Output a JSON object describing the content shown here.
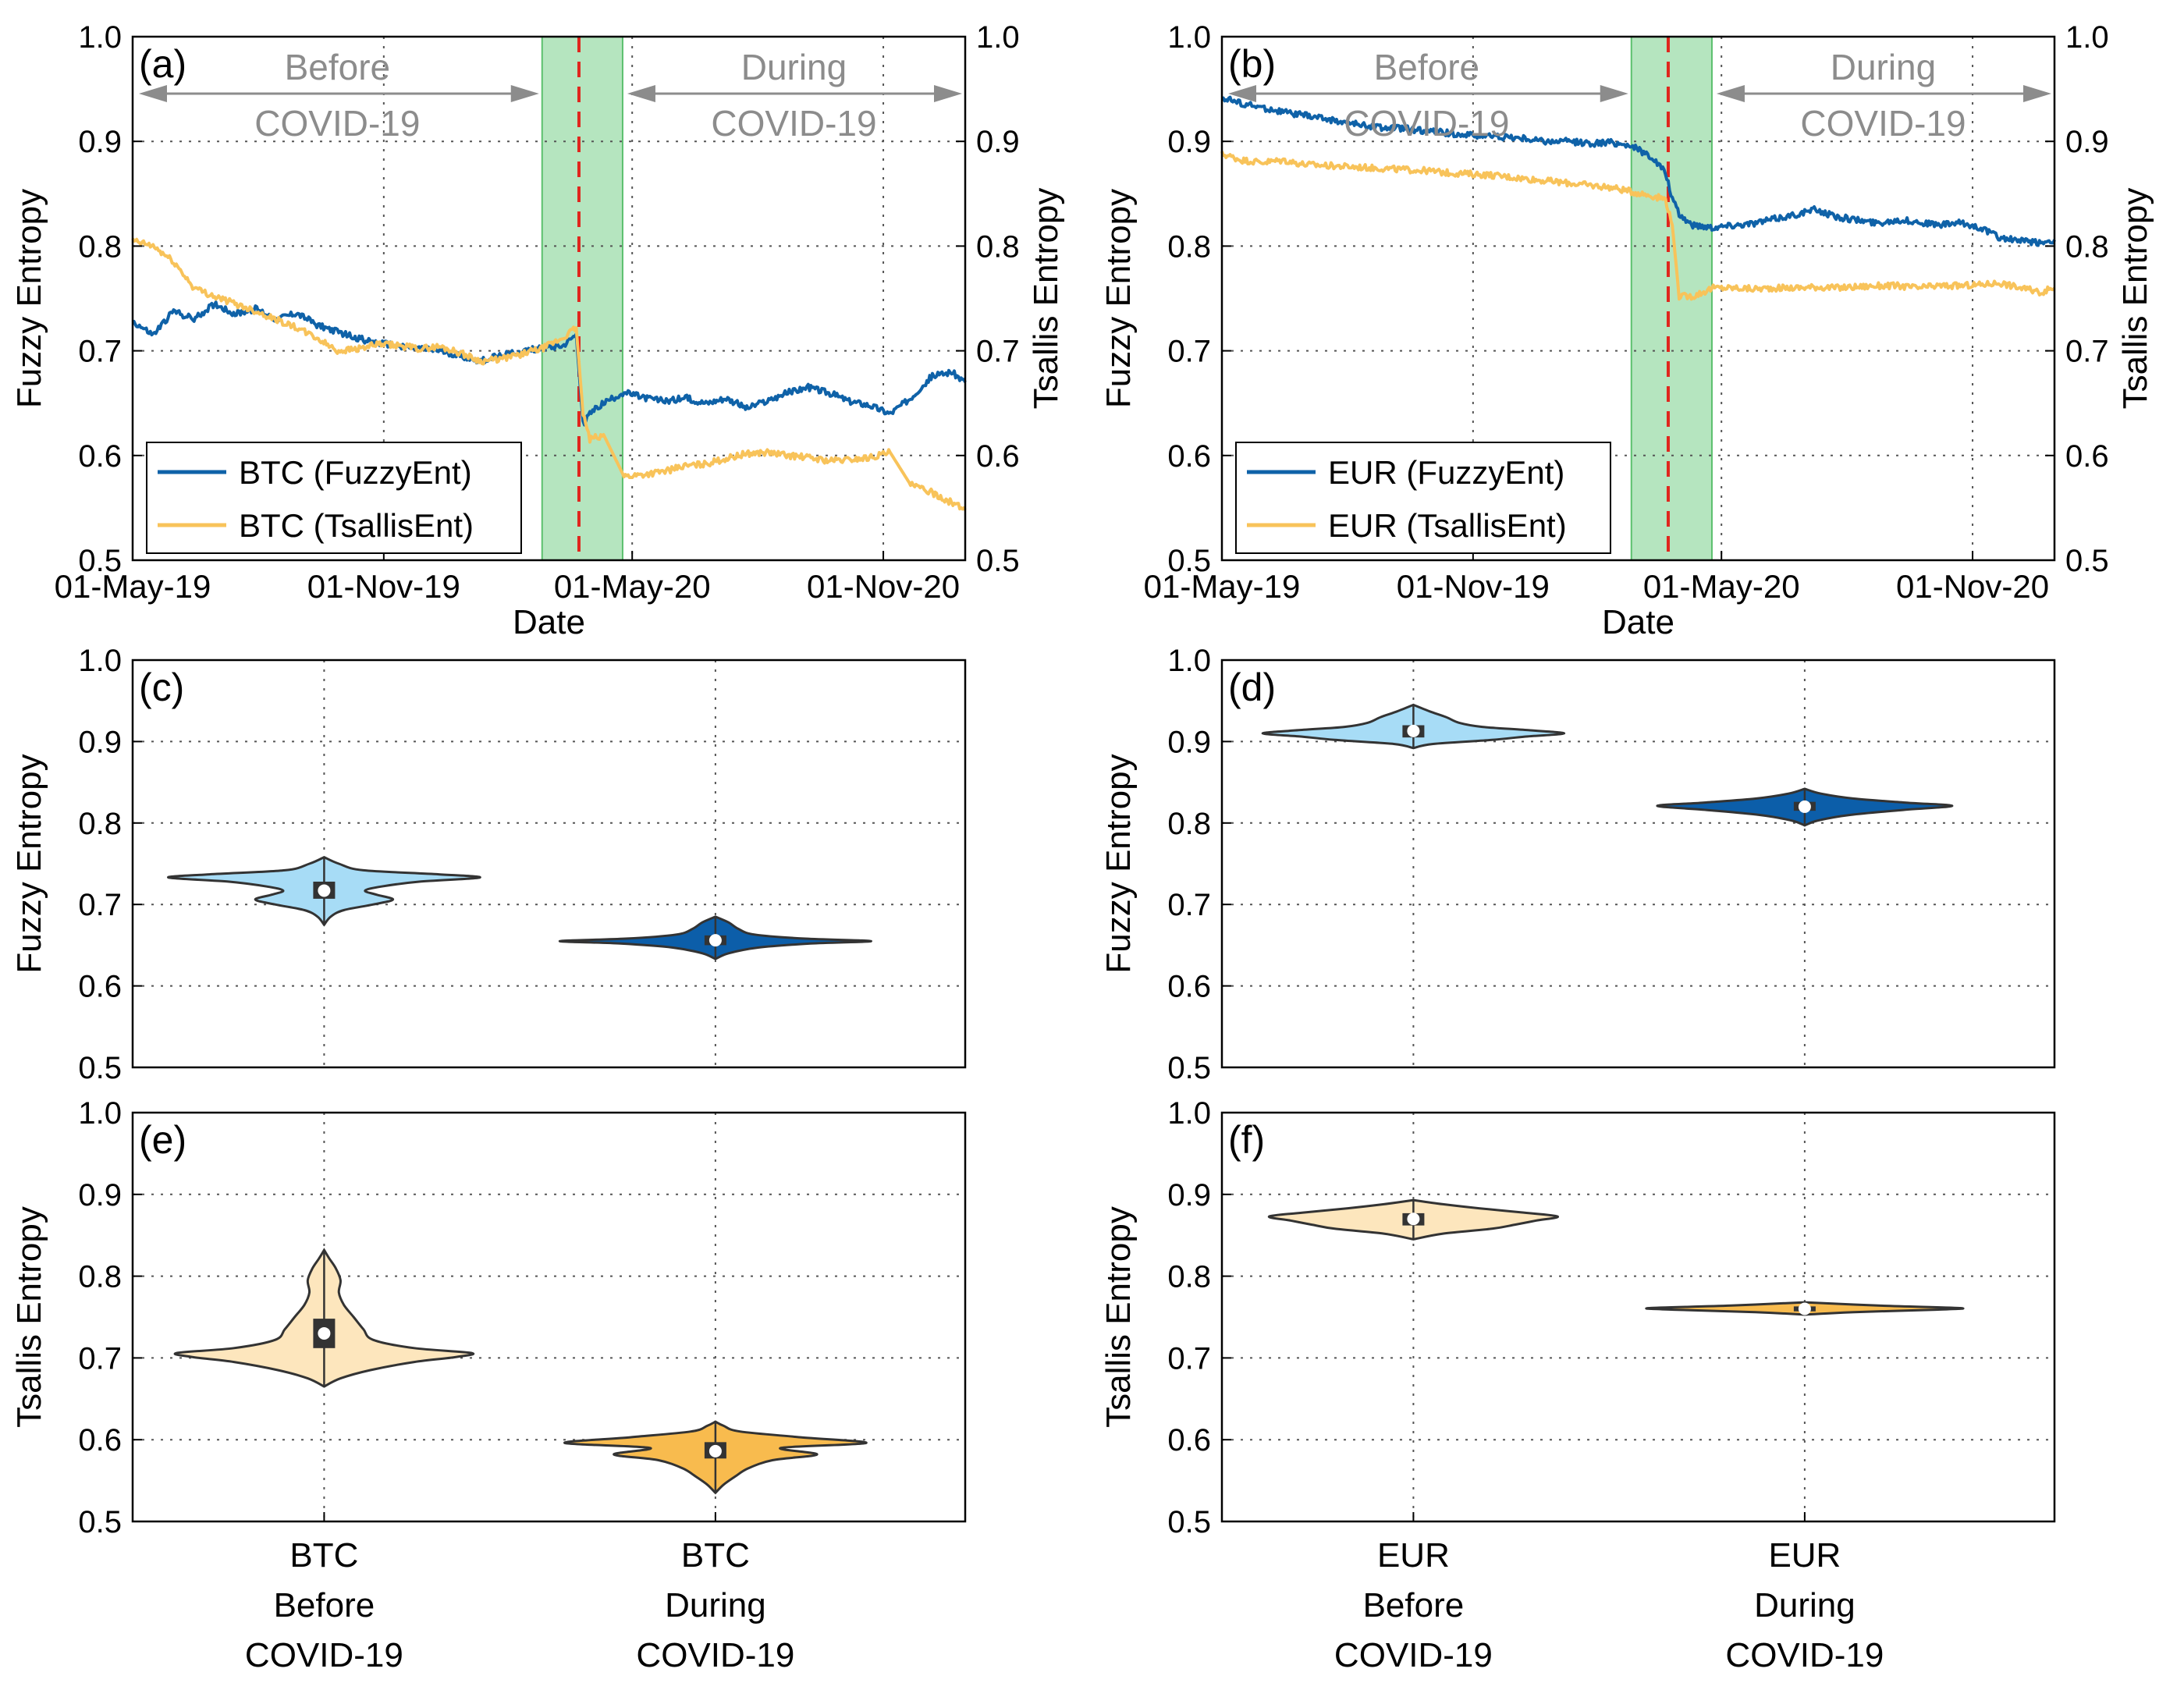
{
  "colors": {
    "fuzzy_line": "#0f62a8",
    "tsallis_line": "#f8c35a",
    "violet_fuzzy_before": "#a7dcf6",
    "violet_fuzzy_during": "#0c5ea9",
    "violet_tsallis_before": "#fde6bd",
    "violet_tsallis_during": "#f8bb4e",
    "covid_band": "#a8e0b4",
    "covid_line": "#e0261d",
    "arrow_text": "#8c8c8c",
    "box": "#333333"
  },
  "chart_data": [
    {
      "id": "a",
      "type": "line",
      "panel_label": "(a)",
      "xlabel": "Date",
      "ylabel": "Fuzzy Entropy",
      "y2label": "Tsallis Entropy",
      "ylim": [
        0.5,
        1.0
      ],
      "y2lim": [
        0.5,
        1.0
      ],
      "yticks": [
        "0.5",
        "0.6",
        "0.7",
        "0.8",
        "0.9",
        "1.0"
      ],
      "x_range_days": [
        0,
        610
      ],
      "xtick_positions_days": [
        0,
        184,
        366,
        550
      ],
      "xtick_labels": [
        "01-May-19",
        "01-Nov-19",
        "01-May-20",
        "01-Nov-20"
      ],
      "covid_window_days": [
        300,
        359
      ],
      "covid_line_day": 327,
      "period_before": [
        "Before",
        "COVID-19"
      ],
      "period_during": [
        "During",
        "COVID-19"
      ],
      "legend_position": "bottom-left",
      "series": [
        {
          "name": "BTC (FuzzyEnt)",
          "x": [
            0,
            15,
            30,
            45,
            60,
            75,
            90,
            105,
            120,
            135,
            150,
            165,
            180,
            195,
            210,
            225,
            240,
            255,
            270,
            285,
            300,
            315,
            325,
            330,
            335,
            345,
            360,
            375,
            390,
            405,
            420,
            435,
            450,
            465,
            480,
            495,
            510,
            525,
            540,
            555,
            570,
            585,
            600,
            610
          ],
          "values": [
            0.728,
            0.715,
            0.738,
            0.73,
            0.745,
            0.735,
            0.74,
            0.73,
            0.736,
            0.725,
            0.718,
            0.712,
            0.707,
            0.705,
            0.702,
            0.7,
            0.695,
            0.69,
            0.696,
            0.699,
            0.703,
            0.705,
            0.716,
            0.63,
            0.64,
            0.65,
            0.66,
            0.655,
            0.652,
            0.655,
            0.65,
            0.655,
            0.645,
            0.652,
            0.66,
            0.665,
            0.66,
            0.652,
            0.648,
            0.64,
            0.655,
            0.675,
            0.68,
            0.67
          ]
        },
        {
          "name": "BTC (TsallisEnt)",
          "axis": "right",
          "x": [
            0,
            15,
            30,
            45,
            60,
            75,
            90,
            105,
            120,
            135,
            150,
            165,
            180,
            195,
            210,
            225,
            240,
            255,
            270,
            285,
            300,
            315,
            325,
            330,
            335,
            345,
            360,
            375,
            390,
            405,
            420,
            435,
            450,
            465,
            480,
            495,
            510,
            525,
            540,
            555,
            570,
            585,
            600,
            610
          ],
          "values": [
            0.805,
            0.8,
            0.785,
            0.76,
            0.752,
            0.745,
            0.738,
            0.73,
            0.722,
            0.712,
            0.7,
            0.702,
            0.706,
            0.705,
            0.702,
            0.704,
            0.698,
            0.69,
            0.692,
            0.697,
            0.702,
            0.712,
            0.722,
            0.64,
            0.615,
            0.62,
            0.58,
            0.582,
            0.585,
            0.59,
            0.592,
            0.597,
            0.602,
            0.603,
            0.6,
            0.598,
            0.595,
            0.596,
            0.598,
            0.603,
            0.572,
            0.565,
            0.555,
            0.548
          ]
        }
      ]
    },
    {
      "id": "b",
      "type": "line",
      "panel_label": "(b)",
      "xlabel": "Date",
      "ylabel": "Fuzzy Entropy",
      "y2label": "Tsallis Entropy",
      "ylim": [
        0.5,
        1.0
      ],
      "y2lim": [
        0.5,
        1.0
      ],
      "yticks": [
        "0.5",
        "0.6",
        "0.7",
        "0.8",
        "0.9",
        "1.0"
      ],
      "x_range_days": [
        0,
        610
      ],
      "xtick_positions_days": [
        0,
        184,
        366,
        550
      ],
      "xtick_labels": [
        "01-May-19",
        "01-Nov-19",
        "01-May-20",
        "01-Nov-20"
      ],
      "covid_window_days": [
        300,
        359
      ],
      "covid_line_day": 327,
      "period_before": [
        "Before",
        "COVID-19"
      ],
      "period_during": [
        "During",
        "COVID-19"
      ],
      "legend_position": "bottom-left",
      "series": [
        {
          "name": "EUR (FuzzyEnt)",
          "x": [
            0,
            15,
            30,
            45,
            60,
            75,
            90,
            105,
            120,
            135,
            150,
            165,
            180,
            195,
            210,
            225,
            240,
            255,
            270,
            285,
            300,
            315,
            325,
            330,
            335,
            345,
            360,
            375,
            390,
            405,
            420,
            435,
            450,
            465,
            480,
            495,
            510,
            525,
            540,
            555,
            570,
            585,
            600,
            610
          ],
          "values": [
            0.942,
            0.936,
            0.932,
            0.928,
            0.925,
            0.922,
            0.918,
            0.915,
            0.913,
            0.912,
            0.91,
            0.908,
            0.906,
            0.905,
            0.904,
            0.902,
            0.9,
            0.9,
            0.898,
            0.899,
            0.896,
            0.885,
            0.87,
            0.845,
            0.83,
            0.82,
            0.818,
            0.82,
            0.822,
            0.826,
            0.83,
            0.835,
            0.828,
            0.825,
            0.822,
            0.825,
            0.823,
            0.82,
            0.822,
            0.818,
            0.808,
            0.805,
            0.803,
            0.806
          ]
        },
        {
          "name": "EUR (TsallisEnt)",
          "axis": "right",
          "x": [
            0,
            15,
            30,
            45,
            60,
            75,
            90,
            105,
            120,
            135,
            150,
            165,
            180,
            195,
            210,
            225,
            240,
            255,
            270,
            285,
            300,
            315,
            325,
            330,
            335,
            345,
            360,
            375,
            390,
            405,
            420,
            435,
            450,
            465,
            480,
            495,
            510,
            525,
            540,
            555,
            570,
            585,
            600,
            610
          ],
          "values": [
            0.888,
            0.882,
            0.88,
            0.882,
            0.878,
            0.877,
            0.876,
            0.875,
            0.874,
            0.873,
            0.872,
            0.87,
            0.869,
            0.868,
            0.866,
            0.864,
            0.862,
            0.86,
            0.858,
            0.856,
            0.852,
            0.848,
            0.845,
            0.82,
            0.752,
            0.752,
            0.76,
            0.76,
            0.759,
            0.76,
            0.76,
            0.761,
            0.76,
            0.761,
            0.762,
            0.762,
            0.76,
            0.762,
            0.762,
            0.763,
            0.765,
            0.76,
            0.756,
            0.76
          ]
        }
      ]
    },
    {
      "id": "c",
      "type": "violin",
      "panel_label": "(c)",
      "ylabel": "Fuzzy Entropy",
      "ylim": [
        0.5,
        1.0
      ],
      "yticks": [
        "0.5",
        "0.6",
        "0.7",
        "0.8",
        "0.9",
        "1.0"
      ],
      "groups": [
        {
          "label": [
            "BTC",
            "Before",
            "COVID-19"
          ],
          "fill": "violet_fuzzy_before",
          "min": 0.675,
          "max": 0.758,
          "q1": 0.707,
          "q3": 0.728,
          "median": 0.717,
          "density": [
            [
              0.675,
              0.0
            ],
            [
              0.685,
              0.04
            ],
            [
              0.693,
              0.12
            ],
            [
              0.7,
              0.3
            ],
            [
              0.706,
              0.42
            ],
            [
              0.712,
              0.32
            ],
            [
              0.717,
              0.25
            ],
            [
              0.722,
              0.35
            ],
            [
              0.728,
              0.58
            ],
            [
              0.733,
              0.95
            ],
            [
              0.737,
              0.7
            ],
            [
              0.742,
              0.24
            ],
            [
              0.75,
              0.09
            ],
            [
              0.758,
              0.0
            ]
          ]
        },
        {
          "label": [
            "BTC",
            "During",
            "COVID-19"
          ],
          "fill": "violet_fuzzy_during",
          "min": 0.633,
          "max": 0.685,
          "q1": 0.65,
          "q3": 0.662,
          "median": 0.656,
          "density": [
            [
              0.633,
              0.0
            ],
            [
              0.64,
              0.08
            ],
            [
              0.647,
              0.26
            ],
            [
              0.652,
              0.58
            ],
            [
              0.655,
              0.95
            ],
            [
              0.658,
              0.55
            ],
            [
              0.663,
              0.24
            ],
            [
              0.67,
              0.14
            ],
            [
              0.678,
              0.08
            ],
            [
              0.685,
              0.0
            ]
          ]
        }
      ]
    },
    {
      "id": "d",
      "type": "violin",
      "panel_label": "(d)",
      "ylabel": "Fuzzy Entropy",
      "ylim": [
        0.5,
        1.0
      ],
      "yticks": [
        "0.5",
        "0.6",
        "0.7",
        "0.8",
        "0.9",
        "1.0"
      ],
      "groups": [
        {
          "label": [
            "EUR",
            "Before",
            "COVID-19"
          ],
          "fill": "violet_fuzzy_before",
          "min": 0.892,
          "max": 0.945,
          "q1": 0.905,
          "q3": 0.92,
          "median": 0.913,
          "density": [
            [
              0.892,
              0.0
            ],
            [
              0.897,
              0.12
            ],
            [
              0.902,
              0.48
            ],
            [
              0.906,
              0.68
            ],
            [
              0.91,
              0.92
            ],
            [
              0.914,
              0.7
            ],
            [
              0.918,
              0.42
            ],
            [
              0.923,
              0.28
            ],
            [
              0.93,
              0.2
            ],
            [
              0.937,
              0.1
            ],
            [
              0.945,
              0.0
            ]
          ]
        },
        {
          "label": [
            "EUR",
            "During",
            "COVID-19"
          ],
          "fill": "violet_fuzzy_during",
          "min": 0.797,
          "max": 0.842,
          "q1": 0.815,
          "q3": 0.826,
          "median": 0.82,
          "density": [
            [
              0.797,
              0.0
            ],
            [
              0.803,
              0.08
            ],
            [
              0.81,
              0.28
            ],
            [
              0.816,
              0.6
            ],
            [
              0.821,
              0.9
            ],
            [
              0.825,
              0.62
            ],
            [
              0.83,
              0.3
            ],
            [
              0.836,
              0.1
            ],
            [
              0.842,
              0.0
            ]
          ]
        }
      ]
    },
    {
      "id": "e",
      "type": "violin",
      "panel_label": "(e)",
      "ylabel": "Tsallis Entropy",
      "ylim": [
        0.5,
        1.0
      ],
      "yticks": [
        "0.5",
        "0.6",
        "0.7",
        "0.8",
        "0.9",
        "1.0"
      ],
      "groups": [
        {
          "label": [
            "BTC",
            "Before",
            "COVID-19"
          ],
          "fill": "violet_tsallis_before",
          "min": 0.665,
          "max": 0.832,
          "q1": 0.712,
          "q3": 0.748,
          "median": 0.73,
          "density": [
            [
              0.665,
              0.0
            ],
            [
              0.675,
              0.1
            ],
            [
              0.685,
              0.28
            ],
            [
              0.695,
              0.55
            ],
            [
              0.701,
              0.8
            ],
            [
              0.706,
              0.9
            ],
            [
              0.712,
              0.55
            ],
            [
              0.722,
              0.3
            ],
            [
              0.735,
              0.24
            ],
            [
              0.75,
              0.18
            ],
            [
              0.765,
              0.12
            ],
            [
              0.78,
              0.09
            ],
            [
              0.795,
              0.1
            ],
            [
              0.81,
              0.07
            ],
            [
              0.822,
              0.03
            ],
            [
              0.832,
              0.0
            ]
          ]
        },
        {
          "label": [
            "BTC",
            "During",
            "COVID-19"
          ],
          "fill": "violet_tsallis_during",
          "min": 0.535,
          "max": 0.622,
          "q1": 0.577,
          "q3": 0.597,
          "median": 0.586,
          "density": [
            [
              0.535,
              0.0
            ],
            [
              0.545,
              0.05
            ],
            [
              0.555,
              0.12
            ],
            [
              0.565,
              0.2
            ],
            [
              0.575,
              0.35
            ],
            [
              0.582,
              0.62
            ],
            [
              0.59,
              0.4
            ],
            [
              0.596,
              0.92
            ],
            [
              0.603,
              0.52
            ],
            [
              0.61,
              0.15
            ],
            [
              0.617,
              0.05
            ],
            [
              0.622,
              0.0
            ]
          ]
        }
      ]
    },
    {
      "id": "f",
      "type": "violin",
      "panel_label": "(f)",
      "ylabel": "Tsallis Entropy",
      "ylim": [
        0.5,
        1.0
      ],
      "yticks": [
        "0.5",
        "0.6",
        "0.7",
        "0.8",
        "0.9",
        "1.0"
      ],
      "groups": [
        {
          "label": [
            "EUR",
            "Before",
            "COVID-19"
          ],
          "fill": "violet_tsallis_before",
          "min": 0.845,
          "max": 0.893,
          "q1": 0.862,
          "q3": 0.877,
          "median": 0.87,
          "density": [
            [
              0.845,
              0.0
            ],
            [
              0.852,
              0.18
            ],
            [
              0.858,
              0.48
            ],
            [
              0.863,
              0.62
            ],
            [
              0.868,
              0.75
            ],
            [
              0.873,
              0.88
            ],
            [
              0.878,
              0.66
            ],
            [
              0.883,
              0.4
            ],
            [
              0.888,
              0.18
            ],
            [
              0.893,
              0.0
            ]
          ]
        },
        {
          "label": [
            "EUR",
            "During",
            "COVID-19"
          ],
          "fill": "violet_tsallis_during",
          "min": 0.753,
          "max": 0.768,
          "q1": 0.757,
          "q3": 0.763,
          "median": 0.76,
          "density": [
            [
              0.753,
              0.0
            ],
            [
              0.756,
              0.3
            ],
            [
              0.759,
              0.8
            ],
            [
              0.761,
              0.95
            ],
            [
              0.764,
              0.45
            ],
            [
              0.768,
              0.0
            ]
          ]
        }
      ]
    }
  ]
}
